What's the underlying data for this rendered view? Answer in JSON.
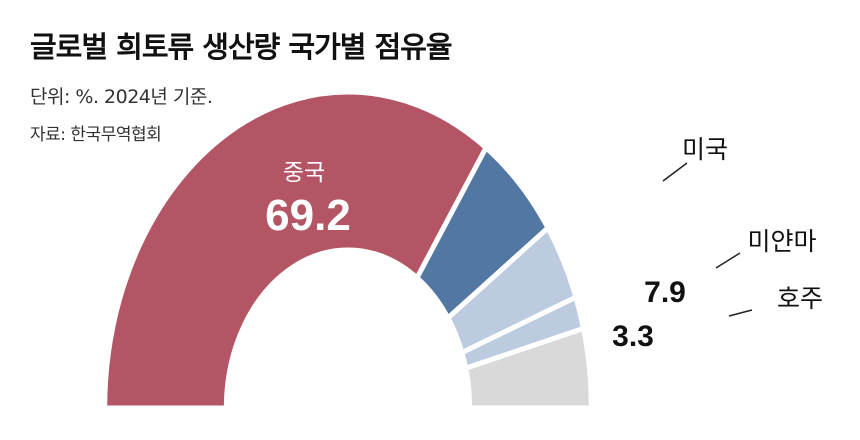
{
  "title": "글로벌 희토류 생산량 국가별 점유율",
  "unit_note": "단위: %. 2024년 기준.",
  "source": "자료: 한국무역협회",
  "chart_data": {
    "type": "pie",
    "subtype": "half-donut",
    "title": "글로벌 희토류 생산량 국가별 점유율",
    "categories": [
      "중국",
      "미국",
      "미얀마",
      "호주",
      ""
    ],
    "values": [
      69.2,
      11.5,
      7.9,
      3.3,
      8.1
    ],
    "value_labels": [
      "69.2",
      "11.5",
      "7.9",
      "3.3",
      ""
    ],
    "colors": [
      "#b35564",
      "#5277a3",
      "#bccbdf",
      "#bccbdf",
      "#d9d9d9"
    ]
  }
}
